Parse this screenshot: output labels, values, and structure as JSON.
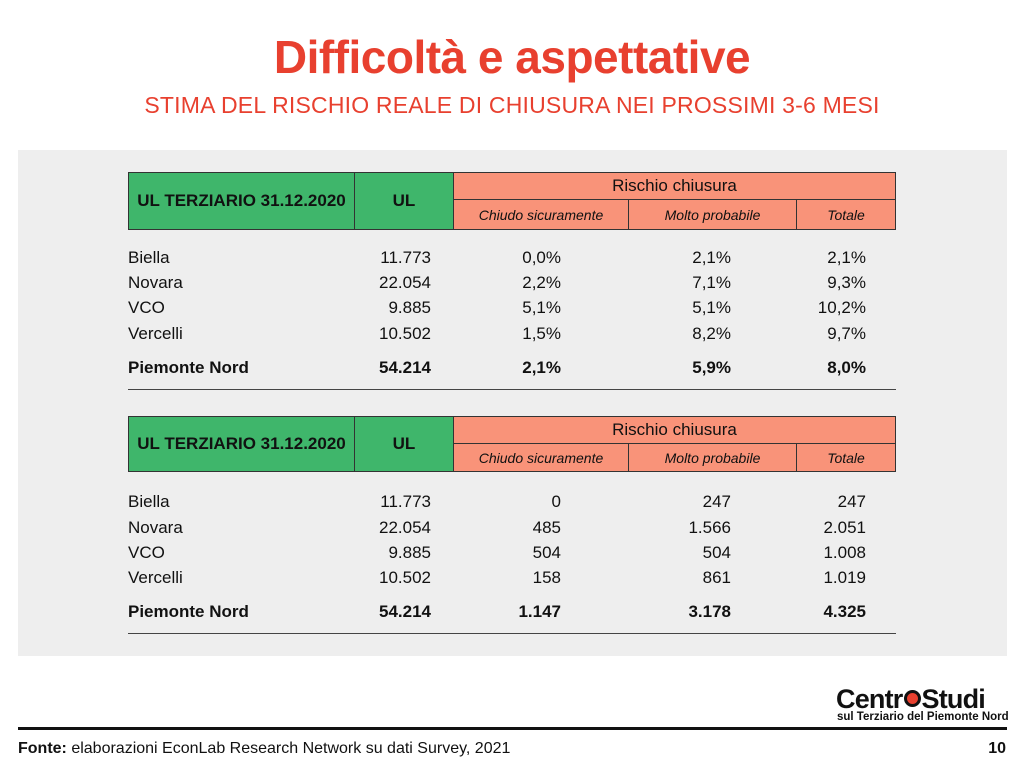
{
  "title": "Difficoltà e aspettative",
  "subtitle": "STIMA DEL RISCHIO REALE DI CHIUSURA NEI PROSSIMI 3-6 MESI",
  "table1": {
    "header": {
      "col0": "UL TERZIARIO 31.12.2020",
      "col1": "UL",
      "group": "Rischio chiusura",
      "sub": [
        "Chiudo sicuramente",
        "Molto probabile",
        "Totale"
      ]
    },
    "rows": [
      {
        "name": "Biella",
        "ul": "11.773",
        "chiudo": "0,0%",
        "molto": "2,1%",
        "totale": "2,1%"
      },
      {
        "name": "Novara",
        "ul": "22.054",
        "chiudo": "2,2%",
        "molto": "7,1%",
        "totale": "9,3%"
      },
      {
        "name": "VCO",
        "ul": "9.885",
        "chiudo": "5,1%",
        "molto": "5,1%",
        "totale": "10,2%"
      },
      {
        "name": "Vercelli",
        "ul": "10.502",
        "chiudo": "1,5%",
        "molto": "8,2%",
        "totale": "9,7%"
      }
    ],
    "total": {
      "name": "Piemonte Nord",
      "ul": "54.214",
      "chiudo": "2,1%",
      "molto": "5,9%",
      "totale": "8,0%"
    }
  },
  "table2": {
    "header": {
      "col0": "UL TERZIARIO 31.12.2020",
      "col1": "UL",
      "group": "Rischio chiusura",
      "sub": [
        "Chiudo sicuramente",
        "Molto probabile",
        "Totale"
      ]
    },
    "rows": [
      {
        "name": "Biella",
        "ul": "11.773",
        "chiudo": "0",
        "molto": "247",
        "totale": "247"
      },
      {
        "name": "Novara",
        "ul": "22.054",
        "chiudo": "485",
        "molto": "1.566",
        "totale": "2.051"
      },
      {
        "name": "VCO",
        "ul": "9.885",
        "chiudo": "504",
        "molto": "504",
        "totale": "1.008"
      },
      {
        "name": "Vercelli",
        "ul": "10.502",
        "chiudo": "158",
        "molto": "861",
        "totale": "1.019"
      }
    ],
    "total": {
      "name": "Piemonte Nord",
      "ul": "54.214",
      "chiudo": "1.147",
      "molto": "3.178",
      "totale": "4.325"
    }
  },
  "logo": {
    "line1_a": "Centr",
    "line1_b": "Studi",
    "line2": "sul Terziario del Piemonte Nord"
  },
  "footer": {
    "label": "Fonte:",
    "text": " elaborazioni EconLab Research Network su dati Survey, 2021",
    "page": "10"
  },
  "colors": {
    "accent": "#e8402f",
    "header_green": "#3fb66b",
    "header_orange": "#f99379",
    "panel": "#eeeeee"
  }
}
